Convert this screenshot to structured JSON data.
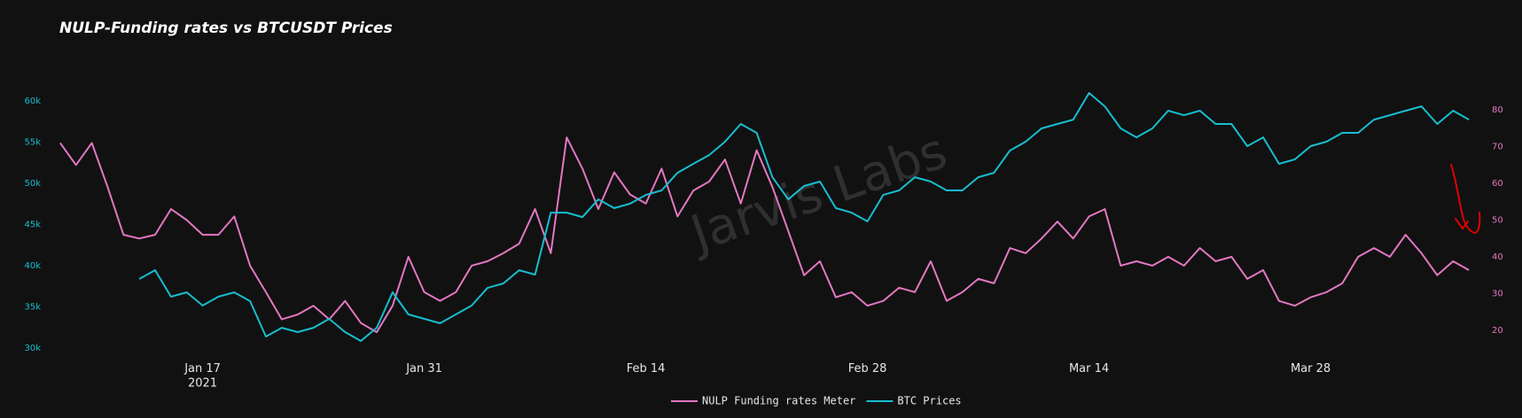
{
  "chart_data": {
    "type": "line",
    "title": "NULP-Funding rates vs BTCUSDT Prices",
    "watermark": "Jarvis Labs",
    "x": [
      "2021-01-08",
      "2021-01-09",
      "2021-01-10",
      "2021-01-11",
      "2021-01-12",
      "2021-01-13",
      "2021-01-14",
      "2021-01-15",
      "2021-01-16",
      "2021-01-17",
      "2021-01-18",
      "2021-01-19",
      "2021-01-20",
      "2021-01-21",
      "2021-01-22",
      "2021-01-23",
      "2021-01-24",
      "2021-01-25",
      "2021-01-26",
      "2021-01-27",
      "2021-01-28",
      "2021-01-29",
      "2021-01-30",
      "2021-01-31",
      "2021-02-01",
      "2021-02-02",
      "2021-02-03",
      "2021-02-04",
      "2021-02-05",
      "2021-02-06",
      "2021-02-07",
      "2021-02-08",
      "2021-02-09",
      "2021-02-10",
      "2021-02-11",
      "2021-02-12",
      "2021-02-13",
      "2021-02-14",
      "2021-02-15",
      "2021-02-16",
      "2021-02-17",
      "2021-02-18",
      "2021-02-19",
      "2021-02-20",
      "2021-02-21",
      "2021-02-22",
      "2021-02-23",
      "2021-02-24",
      "2021-02-25",
      "2021-02-26",
      "2021-02-27",
      "2021-02-28",
      "2021-03-01",
      "2021-03-02",
      "2021-03-03",
      "2021-03-04",
      "2021-03-05",
      "2021-03-06",
      "2021-03-07",
      "2021-03-08",
      "2021-03-09",
      "2021-03-10",
      "2021-03-11",
      "2021-03-12",
      "2021-03-13",
      "2021-03-14",
      "2021-03-15",
      "2021-03-16",
      "2021-03-17",
      "2021-03-18",
      "2021-03-19",
      "2021-03-20",
      "2021-03-21",
      "2021-03-22",
      "2021-03-23",
      "2021-03-24",
      "2021-03-25",
      "2021-03-26",
      "2021-03-27",
      "2021-03-28",
      "2021-03-29",
      "2021-03-30",
      "2021-03-31",
      "2021-04-01",
      "2021-04-02",
      "2021-04-03",
      "2021-04-04",
      "2021-04-05",
      "2021-04-06",
      "2021-04-07"
    ],
    "series": [
      {
        "name": "NULP Funding rates Meter",
        "color": "#e377c2",
        "axis": "y2",
        "values": [
          71,
          65,
          71,
          59,
          46,
          45,
          46,
          53,
          50,
          46,
          46,
          51,
          37.6,
          30.4,
          23,
          24.3,
          26.7,
          23,
          28,
          22,
          19.5,
          26.7,
          40,
          30.4,
          28,
          30.4,
          37.6,
          38.8,
          41,
          43.6,
          53,
          41,
          72.5,
          64,
          53,
          63,
          57,
          54.5,
          64,
          51,
          58,
          60.5,
          66.5,
          54.5,
          69,
          59,
          47,
          35,
          38.8,
          29,
          30.4,
          26.7,
          28,
          31.6,
          30.4,
          38.8,
          28,
          30.4,
          34,
          32.8,
          42.4,
          41,
          45,
          49.6,
          45,
          51,
          53,
          37.6,
          38.8,
          37.6,
          40,
          37.6,
          42.4,
          38.8,
          40,
          34,
          36.4,
          28,
          26.7,
          29,
          30.4,
          32.8,
          40,
          42.4,
          40,
          46,
          41,
          35,
          38.8,
          36.4
        ]
      },
      {
        "name": "BTC Prices",
        "color": "#17becf",
        "values": [
          null,
          null,
          null,
          null,
          null,
          38390,
          39460,
          36240,
          36770,
          35160,
          36240,
          36770,
          35700,
          31400,
          32470,
          31940,
          32470,
          33550,
          31940,
          30860,
          32470,
          36770,
          34090,
          33550,
          33010,
          34090,
          35160,
          37310,
          37850,
          39460,
          38920,
          46450,
          46450,
          45910,
          48060,
          46990,
          47530,
          48600,
          49140,
          51290,
          52370,
          53440,
          55060,
          57210,
          56130,
          50750,
          48060,
          49680,
          50220,
          46990,
          46450,
          45380,
          48600,
          49140,
          50750,
          50220,
          49140,
          49140,
          50750,
          51290,
          53980,
          55060,
          56670,
          57210,
          57740,
          60970,
          59350,
          56670,
          55590,
          56670,
          58820,
          58280,
          58820,
          57210,
          57210,
          54520,
          55590,
          52370,
          52910,
          54520,
          55060,
          56130,
          56130,
          57740,
          58280,
          58820,
          59350,
          57210,
          58820,
          57740
        ]
      }
    ],
    "xlim": [
      "2021-01-07",
      "2021-04-08"
    ],
    "xticks": [
      {
        "value": "2021-01-17",
        "label": "Jan 17\n2021"
      },
      {
        "value": "2021-01-31",
        "label": "Jan 31"
      },
      {
        "value": "2021-02-14",
        "label": "Feb 14"
      },
      {
        "value": "2021-02-28",
        "label": "Feb 28"
      },
      {
        "value": "2021-03-14",
        "label": "Mar 14"
      },
      {
        "value": "2021-03-28",
        "label": "Mar 28"
      }
    ],
    "ylim": [
      29250,
      62050
    ],
    "yticks": [
      {
        "value": 30000,
        "label": "30k"
      },
      {
        "value": 35000,
        "label": "35k"
      },
      {
        "value": 40000,
        "label": "40k"
      },
      {
        "value": 45000,
        "label": "45k"
      },
      {
        "value": 50000,
        "label": "50k"
      },
      {
        "value": 55000,
        "label": "55k"
      },
      {
        "value": 60000,
        "label": "60k"
      }
    ],
    "y2lim": [
      13.5,
      87
    ],
    "y2ticks": [
      20,
      30,
      40,
      50,
      60,
      70,
      80
    ],
    "grid": false,
    "legend": "bottom"
  }
}
